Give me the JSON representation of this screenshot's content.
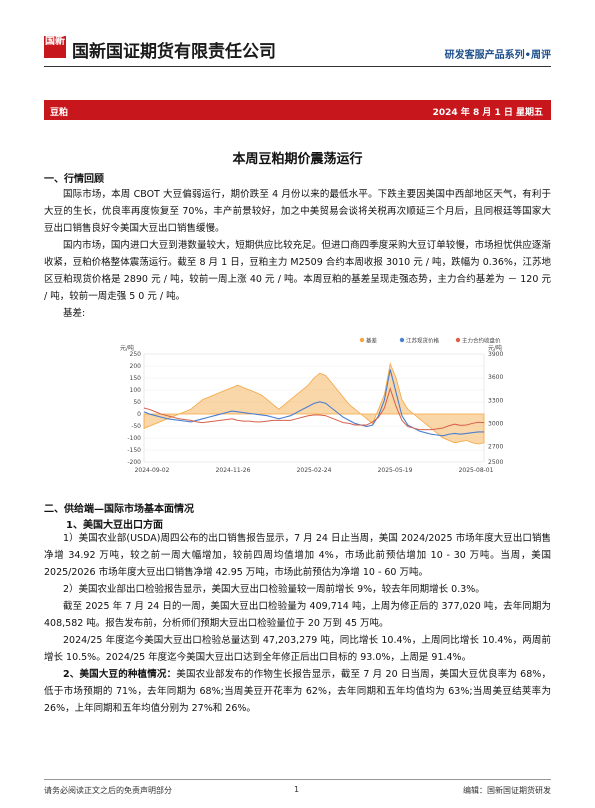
{
  "header": {
    "logo_text": "国新",
    "company": "国新国证期货有限责任公司",
    "series": "研发客服产品系列•周评"
  },
  "band": {
    "product": "豆粕",
    "date": "2024 年 8 月 1 日   星期五"
  },
  "title": "本周豆粕期价震荡运行",
  "sec1": {
    "heading": "一、行情回顾",
    "p1": "国际市场，本周 CBOT 大豆偏弱运行，期价跌至 4 月份以来的最低水平。下跌主要因美国中西部地区天气，有利于大豆的生长，优良率再度恢复至 70%，丰产前景较好，加之中美贸易会谈将关税再次顺延三个月后，且同根廷等国家大豆出口销售良好令美国大豆出口销售缓慢。",
    "p2": "国内市场，国内进口大豆到港数量较大，短期供应比较充足。但进口商四季度采购大豆订单较慢，市场担忧供应逐渐收紧，豆粕价格整体震荡运行。截至 8 月 1 日，豆粕主力 M2509 合约本周收报 3010 元 / 吨，跌幅为 0.36%，江苏地区豆粕现货价格是 2890 元 / 吨，较前一周上涨 40 元 / 吨。本周豆粕的基差呈现走强态势，主力合约基差为 － 120 元 / 吨，较前一周走强 5 0 元 / 吨。",
    "basis_label": "基差:"
  },
  "chart_data": {
    "type": "area",
    "legend": [
      "基差",
      "江苏现货价格",
      "主力合约收盘价"
    ],
    "legend_placement": "top-right",
    "left_unit": "元/吨",
    "right_unit": "元/吨",
    "left_ticks": [
      "250",
      "200",
      "150",
      "100",
      "50",
      "0",
      "-50",
      "-100",
      "-150",
      "-200"
    ],
    "right_ticks": [
      "3900",
      "3600",
      "3300",
      "3000",
      "2700",
      "2500"
    ],
    "ylim_left": [
      -200,
      250
    ],
    "ylim_right": [
      2500,
      3900
    ],
    "x_ticks": [
      "2024-09-02",
      "2024-11-26",
      "2025-02-24",
      "2025-05-19",
      "2025-08-01"
    ],
    "basis": [
      -60,
      -50,
      -40,
      -30,
      -20,
      -10,
      0,
      10,
      20,
      40,
      60,
      70,
      80,
      90,
      100,
      110,
      120,
      110,
      100,
      90,
      80,
      60,
      40,
      20,
      40,
      60,
      80,
      100,
      120,
      150,
      170,
      160,
      130,
      100,
      70,
      40,
      20,
      0,
      -20,
      -40,
      20,
      80,
      210,
      150,
      60,
      20,
      0,
      -20,
      -40,
      -60,
      -80,
      -100,
      -110,
      -120,
      -115,
      -110,
      -120,
      -125,
      -120
    ],
    "spot": [
      3150,
      3120,
      3100,
      3080,
      3060,
      3050,
      3040,
      3030,
      3020,
      3040,
      3060,
      3080,
      3100,
      3120,
      3140,
      3160,
      3150,
      3140,
      3130,
      3120,
      3110,
      3100,
      3080,
      3060,
      3080,
      3100,
      3140,
      3180,
      3220,
      3260,
      3280,
      3260,
      3200,
      3140,
      3080,
      3040,
      3000,
      2980,
      2960,
      2980,
      3100,
      3300,
      3700,
      3400,
      3100,
      2980,
      2940,
      2900,
      2880,
      2860,
      2850,
      2840,
      2860,
      2870,
      2860,
      2870,
      2880,
      2890,
      2890
    ],
    "futures": [
      3200,
      3180,
      3150,
      3120,
      3100,
      3080,
      3060,
      3050,
      3040,
      3020,
      3010,
      3020,
      3030,
      3040,
      3050,
      3060,
      3040,
      3030,
      3030,
      3020,
      3020,
      3030,
      3040,
      3040,
      3040,
      3040,
      3060,
      3080,
      3100,
      3110,
      3110,
      3100,
      3070,
      3040,
      3010,
      3000,
      2980,
      2980,
      2980,
      3020,
      3080,
      3200,
      3450,
      3220,
      3040,
      2960,
      2940,
      2920,
      2920,
      2920,
      2930,
      2940,
      2970,
      2990,
      2975,
      2980,
      3000,
      3015,
      3010
    ]
  },
  "sec2": {
    "heading": "二、供给端—国际市场基本面情况",
    "sub1": "1、美国大豆出口方面",
    "p1": "1）美国农业部(USDA)周四公布的出口销售报告显示，7 月 24 日止当周，美国 2024/2025 市场年度大豆出口销售净增 34.92 万吨，较之前一周大幅增加，较前四周均值增加 4%，市场此前预估增加 10 - 30 万吨。当周，美国 2025/2026 市场年度大豆出口销售净增 42.95 万吨，市场此前预估为净增 10 - 60 万吨。",
    "p2": "2）美国农业部出口检验报告显示，美国大豆出口检验量较一周前增长 9%，较去年同期增长 0.3%。",
    "p3": "截至 2025 年 7 月 24 日的一周，美国大豆出口检验量为 409,714 吨，上周为修正后的 377,020 吨，去年同期为 408,582 吨。报告发布前，分析师们预期大豆出口检验量位于 20 万到 45 万吨。",
    "p4": "2024/25 年度迄今美国大豆出口检验总量达到 47,203,279 吨，同比增长 10.4%，上周同比增长 10.4%，两周前增长 10.5%。2024/25 年度迄今美国大豆出口达到全年修正后出口目标的 93.0%，上周是 91.4%。",
    "sub2": "2、美国大豆的种植情况：",
    "p5": "美国农业部发布的作物生长报告显示，截至 7 月 20 日当周，美国大豆优良率为 68%，低于市场预期的 71%，去年同期为 68%;当周美豆开花率为 62%，去年同期和五年均值均为 63%;当周美豆结荚率为 26%，上年同期和五年均值分别为 27%和 26%。"
  },
  "footer": {
    "left": "请务必阅读正文之后的免责声明部分",
    "page": "1",
    "right": "编辑：国新国证期货研发"
  },
  "colors": {
    "brand_red": "#c8161d",
    "basis": "#f4a640",
    "spot": "#4a7fd1",
    "futures": "#d8604a"
  }
}
